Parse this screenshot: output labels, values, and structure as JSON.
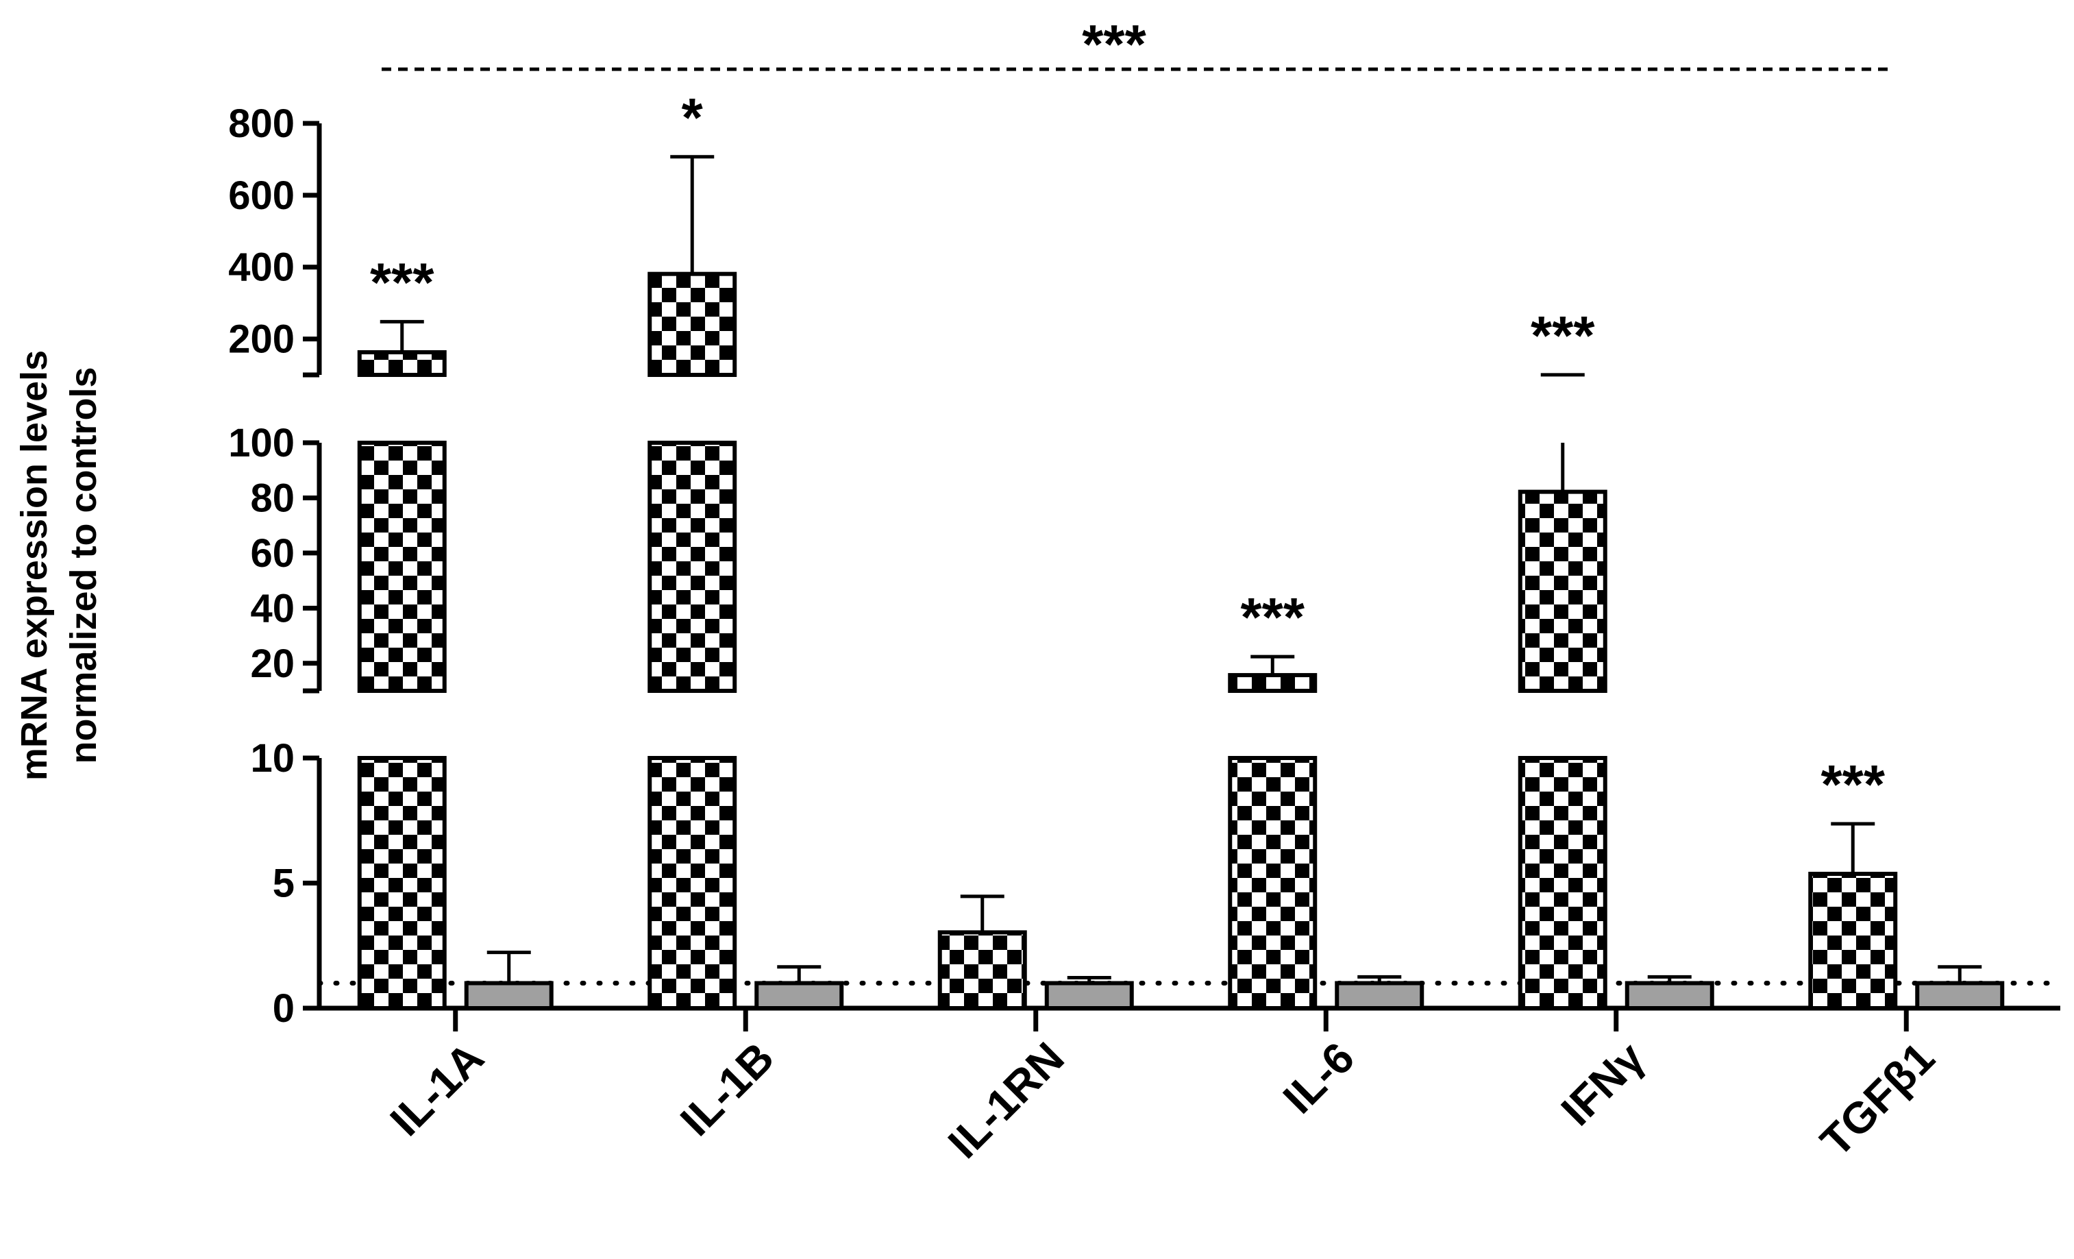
{
  "chart_data": {
    "type": "bar",
    "ylabel": [
      "mRNA expression levels",
      "normalized to controls"
    ],
    "categories": [
      "IL-1A",
      "IL-1B",
      "IL-1RN",
      "IL-6",
      "IFNγ",
      "TGFβ1"
    ],
    "series": [
      {
        "color": "#000000",
        "pattern": "checkerboard",
        "values": [
          163,
          381,
          3.03,
          15.7,
          82.2,
          5.37
        ],
        "errors": [
          85,
          326,
          1.44,
          6.7,
          18,
          2.0
        ]
      },
      {
        "color": "#a0a0a0",
        "values": [
          1,
          1,
          1,
          1,
          1,
          1
        ],
        "errors": [
          1.23,
          0.65,
          0.22,
          0.25,
          0.25,
          0.65
        ]
      }
    ],
    "y_segments": [
      {
        "ylim": [
          0,
          10
        ],
        "yticks": [
          0,
          5,
          10
        ]
      },
      {
        "ylim": [
          10,
          100
        ],
        "yticks": [
          20,
          40,
          60,
          80,
          100
        ]
      },
      {
        "ylim": [
          100,
          800
        ],
        "yticks": [
          200,
          400,
          600,
          800
        ]
      }
    ],
    "reference_line": 1,
    "annotations": [
      {
        "category": "IL-1A",
        "text": "***"
      },
      {
        "category": "IL-1B",
        "text": "*"
      },
      {
        "category": "IL-6",
        "text": "***"
      },
      {
        "category": "IFNγ",
        "text": "***"
      },
      {
        "category": "TGFβ1",
        "text": "***"
      }
    ],
    "overall_annotation": "***"
  }
}
